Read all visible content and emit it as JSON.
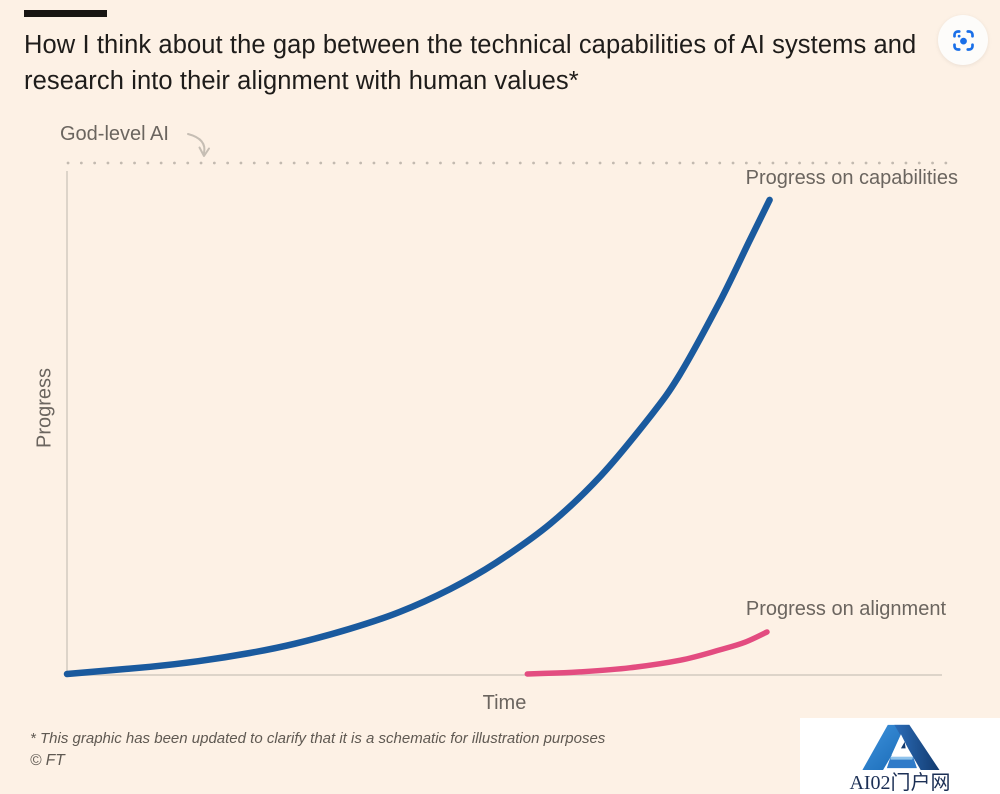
{
  "header": {
    "title": "How I think about the gap between the technical capabilities of AI systems and research into their alignment with human values*"
  },
  "labels": {
    "god_level": "God-level AI",
    "x_axis": "Time",
    "y_axis": "Progress"
  },
  "footnote": {
    "note": "* This graphic has been updated to clarify that it is a schematic for illustration purposes",
    "source": "© FT"
  },
  "watermark": {
    "text": "AI02门户网"
  },
  "icons": {
    "scan": "scan-icon",
    "logo": "ai02-logo"
  },
  "colors": {
    "background": "#fdf1e5",
    "capabilities": "#1a5a9e",
    "alignment": "#e34c80",
    "dotted_ceiling": "#c3bab0",
    "axis": "#ddd4c9",
    "label_gray": "#6b655f",
    "scan_blue": "#1a6fe8"
  },
  "chart_data": {
    "type": "line",
    "title": "How I think about the gap between the technical capabilities of AI systems and research into their alignment with human values*",
    "xlabel": "Time",
    "ylabel": "Progress",
    "x_range": [
      0,
      1
    ],
    "y_range": [
      0,
      1
    ],
    "grid": false,
    "legend_position": "inline-annotations",
    "annotations": [
      {
        "text": "God-level AI",
        "meaning": "dotted ceiling line at y = 1.0 across full width"
      }
    ],
    "series": [
      {
        "name": "Progress on capabilities",
        "color": "#1a5a9e",
        "shape": "exponential growth from origin approaching the God-level ceiling",
        "x": [
          0.0,
          0.095,
          0.15,
          0.209,
          0.26,
          0.323,
          0.38,
          0.438,
          0.49,
          0.552,
          0.61,
          0.666,
          0.7,
          0.746,
          0.78,
          0.803
        ],
        "y": [
          0.002,
          0.016,
          0.027,
          0.043,
          0.061,
          0.09,
          0.123,
          0.168,
          0.219,
          0.295,
          0.389,
          0.504,
          0.586,
          0.729,
          0.848,
          0.928
        ]
      },
      {
        "name": "Progress on alignment",
        "color": "#e34c80",
        "shape": "shallow late-starting curve barely rising above zero",
        "x": [
          0.526,
          0.56,
          0.586,
          0.643,
          0.701,
          0.746,
          0.775,
          0.8
        ],
        "y": [
          0.002,
          0.004,
          0.006,
          0.014,
          0.029,
          0.049,
          0.064,
          0.084
        ]
      }
    ]
  }
}
